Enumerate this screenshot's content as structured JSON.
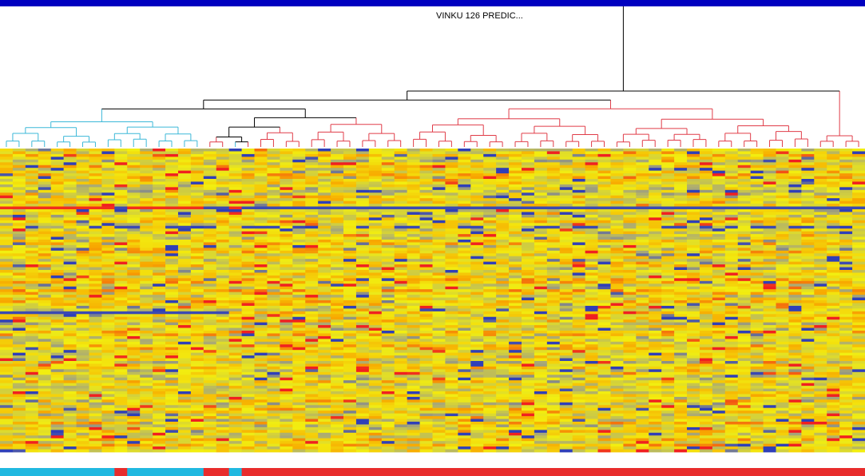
{
  "chart_data": {
    "type": "heatmap",
    "title": "",
    "xlabel": "",
    "ylabel": "",
    "dendrogram_label": "VINKU 126 PREDIC...",
    "n_samples": 68,
    "n_genes": 110,
    "colormap": {
      "low": "#2f3fb8",
      "lowmid": "#a8a878",
      "mid": "#f2ee10",
      "highmid": "#f8a800",
      "high": "#f02020"
    },
    "cluster_colors": {
      "A": "#3cb8d8",
      "B": "#e03c48"
    },
    "sample_groups": [
      "A",
      "A",
      "A",
      "A",
      "A",
      "A",
      "A",
      "A",
      "A",
      "B",
      "A",
      "A",
      "A",
      "A",
      "A",
      "A",
      "B",
      "B",
      "A",
      "B",
      "B",
      "B",
      "B",
      "B",
      "B",
      "B",
      "B",
      "B",
      "B",
      "B",
      "B",
      "B",
      "B",
      "B",
      "B",
      "B",
      "B",
      "B",
      "B",
      "B",
      "B",
      "B",
      "B",
      "B",
      "B",
      "B",
      "B",
      "B",
      "B",
      "B",
      "B",
      "B",
      "B",
      "B",
      "B",
      "B",
      "B",
      "B",
      "B",
      "B",
      "B",
      "B",
      "B",
      "B",
      "B",
      "B",
      "B",
      "B"
    ],
    "annotation_colors": {
      "A": "#20b8e0",
      "B": "#e82c2c"
    },
    "dendrogram_leaf_colors": [
      "A",
      "A",
      "A",
      "A",
      "A",
      "A",
      "A",
      "A",
      "A",
      "A",
      "A",
      "A",
      "A",
      "A",
      "A",
      "A",
      "B",
      "B",
      "A",
      "B",
      "B",
      "B",
      "B",
      "B",
      "B",
      "B",
      "B",
      "B",
      "B",
      "B",
      "B",
      "B",
      "B",
      "B",
      "B",
      "B",
      "B",
      "B",
      "B",
      "B",
      "B",
      "B",
      "B",
      "B",
      "B",
      "B",
      "B",
      "B",
      "B",
      "B",
      "B",
      "B",
      "B",
      "B",
      "B",
      "B",
      "B",
      "B",
      "B",
      "B",
      "B",
      "B",
      "B",
      "B",
      "B",
      "B",
      "B",
      "B"
    ],
    "notable_rows": [
      {
        "gene_index": 21,
        "pattern": "red in cluster A samples, blue in cluster B samples"
      },
      {
        "gene_index": 28,
        "pattern": "blue stripe across many samples"
      },
      {
        "gene_index": 59,
        "pattern": "blue stripe in left samples"
      }
    ],
    "value_range": [
      -1,
      1
    ],
    "seed": 126
  }
}
